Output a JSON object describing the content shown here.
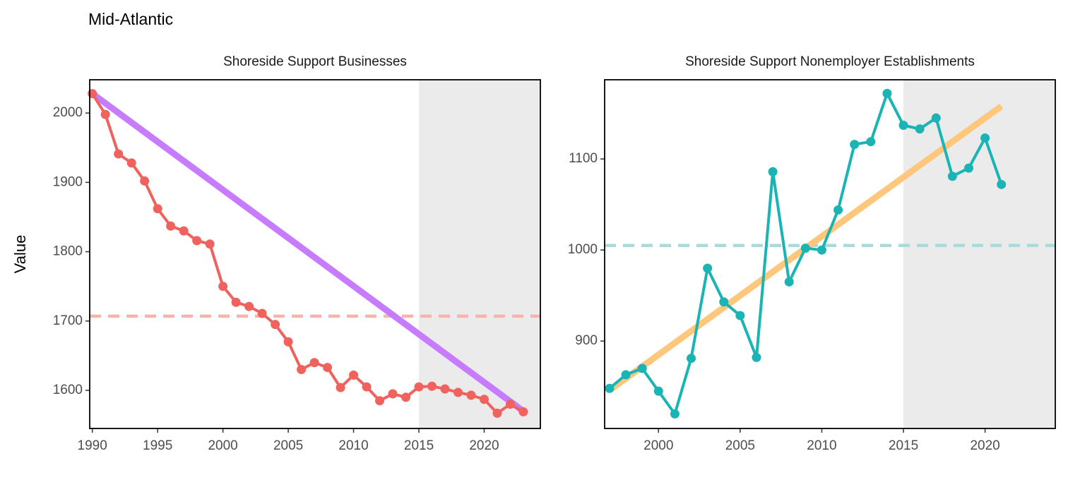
{
  "title": "Mid-Atlantic",
  "y_label": "Value",
  "chart_data": [
    {
      "type": "line",
      "title": "Shoreside Support Businesses",
      "x": [
        1990,
        1991,
        1992,
        1993,
        1994,
        1995,
        1996,
        1997,
        1998,
        1999,
        2000,
        2001,
        2002,
        2003,
        2004,
        2005,
        2006,
        2007,
        2008,
        2009,
        2010,
        2011,
        2012,
        2013,
        2014,
        2015,
        2016,
        2017,
        2018,
        2019,
        2020,
        2021,
        2022,
        2023
      ],
      "series": [
        {
          "color": "#f0625d",
          "values": [
            2028,
            1998,
            1941,
            1928,
            1902,
            1862,
            1837,
            1830,
            1816,
            1811,
            1750,
            1727,
            1721,
            1711,
            1695,
            1670,
            1630,
            1640,
            1633,
            1604,
            1622,
            1605,
            1585,
            1595,
            1590,
            1605,
            1606,
            1602,
            1597,
            1593,
            1587,
            1567,
            1580,
            1569
          ]
        }
      ],
      "trend": {
        "color": "#c77cff",
        "x": [
          1990,
          2023
        ],
        "values": [
          2028,
          1570
        ]
      },
      "mean_line": {
        "color": "#f7b3ae",
        "value": 1707
      },
      "shade_from": 2015,
      "xlim": [
        1989.8,
        2024.3
      ],
      "xticks": [
        1990,
        1995,
        2000,
        2005,
        2010,
        2015,
        2020
      ],
      "ylim": [
        1545,
        2048
      ],
      "yticks": [
        1600,
        1700,
        1800,
        1900,
        2000
      ]
    },
    {
      "type": "line",
      "title": "Shoreside Support Nonemployer Establishments",
      "x": [
        1997,
        1998,
        1999,
        2000,
        2001,
        2002,
        2003,
        2004,
        2005,
        2006,
        2007,
        2008,
        2009,
        2010,
        2011,
        2012,
        2013,
        2014,
        2015,
        2016,
        2017,
        2018,
        2019,
        2020,
        2021
      ],
      "series": [
        {
          "color": "#1ab4b4",
          "values": [
            848,
            863,
            870,
            845,
            820,
            881,
            980,
            943,
            928,
            882,
            1086,
            965,
            1002,
            1000,
            1044,
            1116,
            1119,
            1172,
            1137,
            1133,
            1145,
            1081,
            1090,
            1123,
            1072
          ]
        }
      ],
      "trend": {
        "color": "#ffc77c",
        "x": [
          1997,
          2021
        ],
        "values": [
          846,
          1158
        ]
      },
      "mean_line": {
        "color": "#a6dcdc",
        "value": 1005
      },
      "shade_from": 2015,
      "xlim": [
        1996.7,
        2024.3
      ],
      "xticks": [
        2000,
        2005,
        2010,
        2015,
        2020
      ],
      "ylim": [
        804,
        1187
      ],
      "yticks": [
        900,
        1000,
        1100
      ]
    }
  ]
}
